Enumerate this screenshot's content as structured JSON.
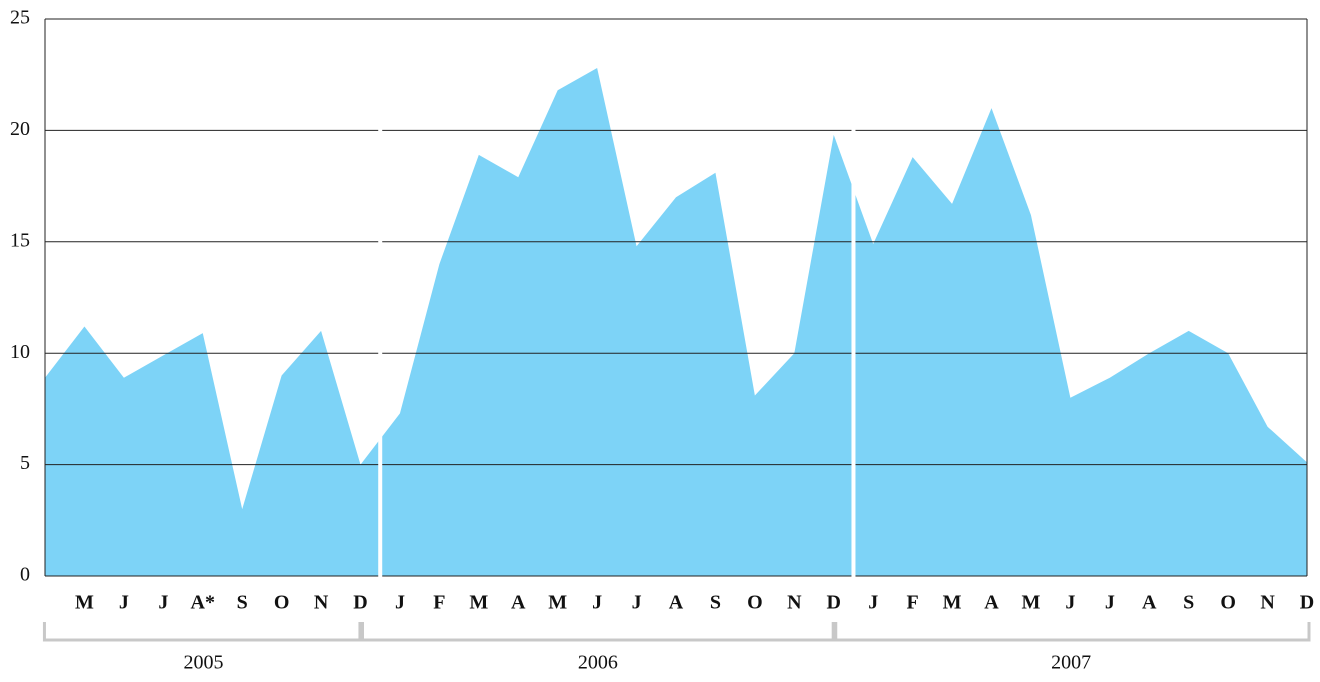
{
  "chart_data": {
    "type": "area",
    "color": "#7dd3f7",
    "categories": [
      null,
      "M",
      "J",
      "J",
      "A*",
      "S",
      "O",
      "N",
      "D",
      "J",
      "F",
      "M",
      "A",
      "M",
      "J",
      "J",
      "A",
      "S",
      "O",
      "N",
      "D",
      "J",
      "F",
      "M",
      "A",
      "M",
      "J",
      "J",
      "A",
      "S",
      "O",
      "N",
      "D"
    ],
    "values": [
      8.9,
      11.2,
      8.9,
      9.9,
      10.9,
      3.0,
      9.0,
      11.0,
      5.0,
      7.3,
      14.0,
      18.9,
      17.9,
      21.8,
      22.8,
      14.8,
      17.0,
      18.1,
      8.1,
      10.0,
      19.8,
      14.9,
      18.8,
      16.7,
      21.0,
      16.2,
      8.0,
      8.9,
      10.0,
      11.0,
      10.0,
      6.7,
      5.1
    ],
    "years": [
      "2005",
      "2006",
      "2007"
    ],
    "ylim": [
      0,
      25
    ],
    "yticks": [
      0,
      5,
      10,
      15,
      20,
      25
    ],
    "grid": true
  }
}
